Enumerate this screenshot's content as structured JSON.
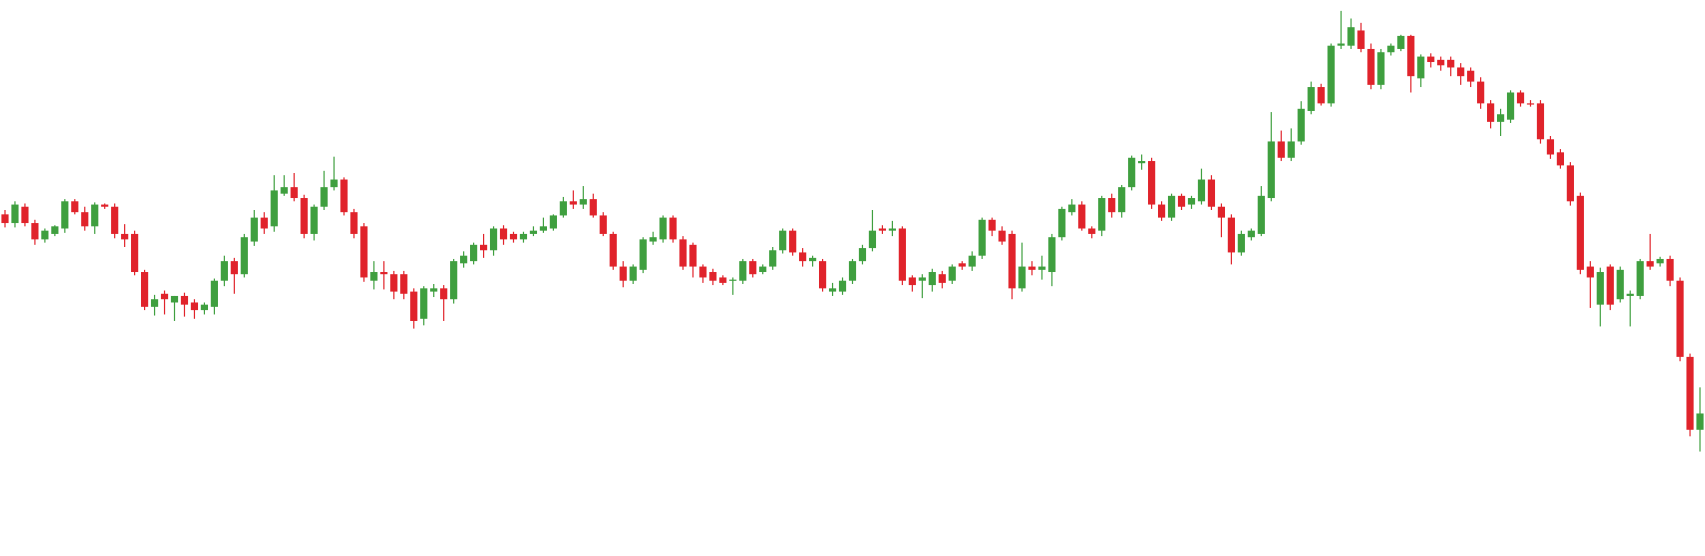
{
  "chart_data": {
    "type": "candlestick",
    "up_color": "#3f9f3f",
    "down_color": "#e0232b",
    "ylim": [
      0,
      511
    ],
    "open": [
      314,
      306,
      321,
      306,
      291,
      296,
      301,
      326,
      316,
      303,
      323,
      321,
      296,
      296,
      261,
      229,
      241,
      233,
      239,
      233,
      226,
      229,
      253,
      271,
      259,
      289,
      311,
      303,
      333,
      339,
      329,
      296,
      321,
      339,
      346,
      316,
      303,
      253,
      261,
      259,
      259,
      243,
      218,
      243,
      246,
      236,
      269,
      271,
      286,
      281,
      301,
      296,
      291,
      296,
      299,
      301,
      313,
      326,
      323,
      328,
      313,
      296,
      266,
      253,
      263,
      289,
      291,
      311,
      291,
      286,
      266,
      261,
      256,
      253,
      253,
      271,
      261,
      266,
      281,
      299,
      279,
      271,
      271,
      243,
      243,
      253,
      271,
      283,
      301,
      299,
      301,
      256,
      253,
      249,
      259,
      253,
      269,
      266,
      276,
      309,
      299,
      296,
      246,
      266,
      263,
      261,
      293,
      316,
      323,
      301,
      299,
      329,
      316,
      339,
      361,
      363,
      323,
      311,
      331,
      323,
      326,
      346,
      321,
      311,
      279,
      293,
      296,
      329,
      381,
      366,
      381,
      409,
      431,
      416,
      469,
      469,
      483,
      466,
      433,
      463,
      466,
      478,
      439,
      459,
      456,
      456,
      449,
      446,
      436,
      416,
      399,
      401,
      426,
      416,
      416,
      383,
      371,
      359,
      331,
      266,
      231,
      266,
      236,
      239,
      239,
      271,
      269,
      273,
      253,
      183,
      116
    ],
    "high": [
      318,
      326,
      324,
      309,
      301,
      304,
      328,
      328,
      321,
      325,
      324,
      324,
      305,
      299,
      263,
      240,
      244,
      239,
      242,
      236,
      233,
      255,
      276,
      274,
      296,
      318,
      316,
      350,
      350,
      352,
      332,
      323,
      354,
      367,
      348,
      319,
      306,
      271,
      271,
      262,
      262,
      246,
      248,
      250,
      249,
      273,
      280,
      288,
      296,
      303,
      304,
      298,
      298,
      303,
      311,
      314,
      330,
      336,
      340,
      333,
      316,
      298,
      271,
      268,
      293,
      298,
      313,
      313,
      294,
      288,
      268,
      264,
      258,
      256,
      273,
      273,
      268,
      284,
      301,
      301,
      283,
      276,
      273,
      251,
      256,
      273,
      286,
      318,
      304,
      308,
      303,
      258,
      259,
      264,
      262,
      268,
      271,
      280,
      311,
      311,
      303,
      299,
      288,
      271,
      276,
      296,
      321,
      328,
      326,
      303,
      331,
      333,
      341,
      368,
      369,
      366,
      326,
      333,
      333,
      331,
      356,
      350,
      324,
      314,
      299,
      301,
      340,
      408,
      391,
      393,
      418,
      436,
      434,
      471,
      501,
      494,
      490,
      471,
      466,
      471,
      479,
      479,
      461,
      462,
      459,
      459,
      453,
      449,
      440,
      419,
      411,
      428,
      428,
      419,
      419,
      386,
      374,
      362,
      334,
      271,
      265,
      268,
      266,
      244,
      273,
      296,
      275,
      276,
      256,
      186,
      155
    ],
    "low": [
      302,
      302,
      303,
      286,
      288,
      294,
      297,
      314,
      299,
      296,
      319,
      292,
      284,
      258,
      226,
      221,
      222,
      216,
      220,
      218,
      222,
      222,
      248,
      241,
      256,
      285,
      296,
      298,
      331,
      326,
      292,
      290,
      318,
      336,
      313,
      292,
      252,
      245,
      245,
      236,
      236,
      209,
      212,
      238,
      216,
      232,
      265,
      268,
      274,
      276,
      286,
      288,
      288,
      294,
      297,
      299,
      311,
      319,
      319,
      311,
      294,
      263,
      247,
      250,
      260,
      286,
      288,
      288,
      263,
      256,
      251,
      249,
      249,
      240,
      250,
      256,
      259,
      263,
      278,
      276,
      266,
      266,
      243,
      239,
      240,
      250,
      268,
      280,
      296,
      294,
      249,
      243,
      237,
      243,
      246,
      250,
      263,
      262,
      273,
      294,
      286,
      236,
      243,
      258,
      254,
      248,
      290,
      313,
      299,
      292,
      294,
      311,
      311,
      336,
      355,
      319,
      308,
      308,
      318,
      319,
      323,
      318,
      293,
      268,
      276,
      290,
      294,
      326,
      363,
      363,
      378,
      406,
      414,
      413,
      466,
      466,
      463,
      429,
      429,
      460,
      464,
      426,
      431,
      449,
      446,
      441,
      433,
      431,
      411,
      393,
      386,
      398,
      413,
      413,
      379,
      365,
      356,
      322,
      259,
      228,
      211,
      226,
      233,
      211,
      236,
      263,
      266,
      248,
      179,
      110,
      96
    ],
    "close": [
      306,
      323,
      306,
      291,
      299,
      303,
      326,
      316,
      303,
      323,
      321,
      296,
      291,
      261,
      229,
      236,
      236,
      239,
      231,
      226,
      231,
      253,
      271,
      259,
      293,
      311,
      301,
      336,
      339,
      329,
      296,
      321,
      339,
      346,
      316,
      296,
      256,
      261,
      259,
      243,
      241,
      216,
      246,
      246,
      236,
      271,
      276,
      286,
      281,
      301,
      291,
      291,
      296,
      299,
      303,
      313,
      326,
      323,
      328,
      313,
      296,
      266,
      253,
      266,
      291,
      293,
      311,
      291,
      266,
      266,
      256,
      253,
      251,
      254,
      271,
      259,
      266,
      281,
      299,
      279,
      271,
      274,
      246,
      246,
      253,
      271,
      283,
      299,
      299,
      301,
      253,
      249,
      256,
      261,
      251,
      266,
      266,
      276,
      309,
      299,
      289,
      246,
      266,
      263,
      266,
      293,
      319,
      323,
      301,
      296,
      329,
      316,
      339,
      366,
      363,
      323,
      311,
      331,
      321,
      329,
      346,
      321,
      311,
      279,
      296,
      299,
      331,
      381,
      366,
      381,
      411,
      431,
      416,
      469,
      471,
      486,
      466,
      433,
      463,
      469,
      478,
      441,
      459,
      454,
      451,
      449,
      441,
      436,
      416,
      399,
      406,
      426,
      416,
      415,
      383,
      369,
      359,
      326,
      263,
      256,
      261,
      231,
      263,
      241,
      271,
      266,
      273,
      253,
      183,
      116,
      131
    ]
  }
}
